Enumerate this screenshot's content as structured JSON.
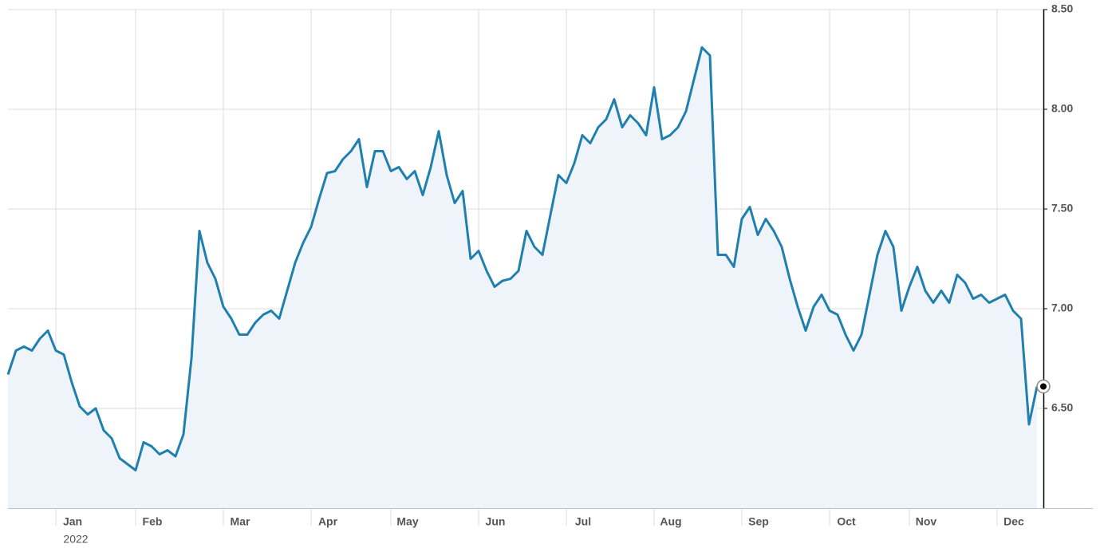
{
  "chart_data": {
    "type": "line",
    "year_label": "2022",
    "color": "#1f7fad",
    "fill": "#eef4fa",
    "values": [
      6.67,
      6.79,
      6.81,
      6.79,
      6.85,
      6.89,
      6.79,
      6.77,
      6.63,
      6.51,
      6.47,
      6.5,
      6.39,
      6.35,
      6.25,
      6.22,
      6.19,
      6.33,
      6.31,
      6.27,
      6.29,
      6.26,
      6.37,
      6.75,
      7.39,
      7.23,
      7.15,
      7.01,
      6.95,
      6.87,
      6.87,
      6.93,
      6.97,
      6.99,
      6.95,
      7.09,
      7.23,
      7.33,
      7.41,
      7.55,
      7.68,
      7.69,
      7.75,
      7.79,
      7.85,
      7.61,
      7.79,
      7.79,
      7.69,
      7.71,
      7.65,
      7.69,
      7.57,
      7.71,
      7.89,
      7.67,
      7.53,
      7.59,
      7.25,
      7.29,
      7.19,
      7.11,
      7.14,
      7.15,
      7.19,
      7.39,
      7.31,
      7.27,
      7.47,
      7.67,
      7.63,
      7.73,
      7.87,
      7.83,
      7.91,
      7.95,
      8.05,
      7.91,
      7.97,
      7.93,
      7.87,
      8.11,
      7.85,
      7.87,
      7.91,
      7.99,
      8.15,
      8.31,
      8.27,
      7.27,
      7.27,
      7.21,
      7.45,
      7.51,
      7.37,
      7.45,
      7.39,
      7.31,
      7.15,
      7.01,
      6.89,
      7.01,
      7.07,
      6.99,
      6.97,
      6.87,
      6.79,
      6.87,
      7.07,
      7.27,
      7.39,
      7.31,
      6.99,
      7.11,
      7.21,
      7.09,
      7.03,
      7.09,
      7.03,
      7.17,
      7.13,
      7.05,
      7.07,
      7.03,
      7.05,
      7.07,
      6.99,
      6.95,
      6.42,
      6.61
    ],
    "xlim": [
      0,
      129.8
    ],
    "xticks": [
      {
        "value": 6,
        "label": "Jan"
      },
      {
        "value": 16,
        "label": "Feb"
      },
      {
        "value": 27,
        "label": "Mar"
      },
      {
        "value": 38,
        "label": "Apr"
      },
      {
        "value": 48,
        "label": "May"
      },
      {
        "value": 59,
        "label": "Jun"
      },
      {
        "value": 70,
        "label": "Jul"
      },
      {
        "value": 81,
        "label": "Aug"
      },
      {
        "value": 92,
        "label": "Sep"
      },
      {
        "value": 103,
        "label": "Oct"
      },
      {
        "value": 113,
        "label": "Nov"
      },
      {
        "value": 124,
        "label": "Dec"
      }
    ],
    "ylim": [
      6,
      8.5
    ],
    "yticks": [
      {
        "value": 6.5,
        "label": "6.50"
      },
      {
        "value": 7,
        "label": "7.00"
      },
      {
        "value": 7.5,
        "label": "7.50"
      },
      {
        "value": 8,
        "label": "8.00"
      },
      {
        "value": 8.5,
        "label": "8.50"
      }
    ],
    "grid": true
  }
}
